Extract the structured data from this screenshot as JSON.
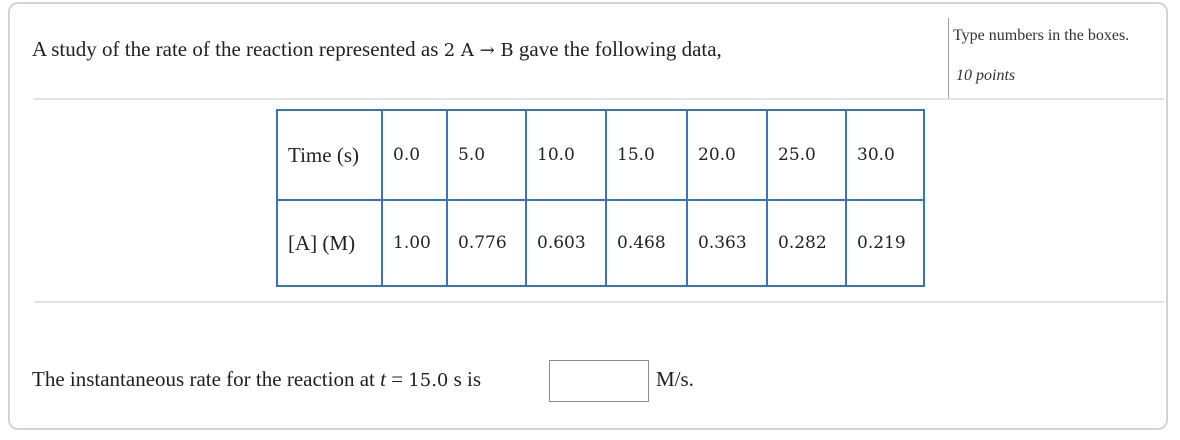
{
  "problem": {
    "intro_before": "A study of the rate of the reaction represented as ",
    "reaction": "2 A → B",
    "intro_after": " gave the following data,"
  },
  "side_panel": {
    "instruction": "Type numbers in the boxes.",
    "points": "10 points"
  },
  "table": {
    "row1_header": "Time (s)",
    "row1_values": [
      "0.0",
      "5.0",
      "10.0",
      "15.0",
      "20.0",
      "25.0",
      "30.0"
    ],
    "row2_header": "[A] (M)",
    "row2_values": [
      "1.00",
      "0.776",
      "0.603",
      "0.468",
      "0.363",
      "0.282",
      "0.219"
    ]
  },
  "question": {
    "text_before": "The instantaneous rate for the reaction at ",
    "variable": "t",
    "equals": " = ",
    "time_value": "15.0",
    "text_after": " s is",
    "answer_value": "",
    "units": "M/s."
  },
  "colors": {
    "table_border": "#3a73b9",
    "card_border": "#d4d4d4"
  }
}
